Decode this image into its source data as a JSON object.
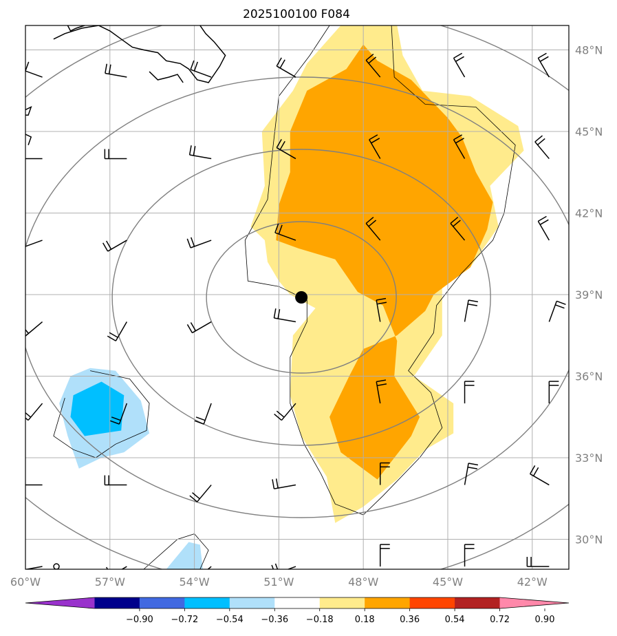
{
  "chart_data": {
    "type": "map",
    "title": "2025100100 F084",
    "lon_range": [
      -60,
      -40.7
    ],
    "lat_range": [
      28.9,
      48.9
    ],
    "lon_ticks": [
      {
        "value": -60,
        "label": "60°W"
      },
      {
        "value": -57,
        "label": "57°W"
      },
      {
        "value": -54,
        "label": "54°W"
      },
      {
        "value": -51,
        "label": "51°W"
      },
      {
        "value": -48,
        "label": "48°W"
      },
      {
        "value": -45,
        "label": "45°W"
      },
      {
        "value": -42,
        "label": "42°W"
      }
    ],
    "lat_ticks": [
      {
        "value": 30,
        "label": "30°N"
      },
      {
        "value": 33,
        "label": "33°N"
      },
      {
        "value": 36,
        "label": "36°N"
      },
      {
        "value": 39,
        "label": "39°N"
      },
      {
        "value": 42,
        "label": "42°N"
      },
      {
        "value": 45,
        "label": "45°N"
      },
      {
        "value": 48,
        "label": "48°N"
      }
    ],
    "grid": true,
    "center_marker": {
      "lon": -50.2,
      "lat": 38.9
    },
    "range_rings": true,
    "colorbar": {
      "ticks": [
        "−0.90",
        "−0.72",
        "−0.54",
        "−0.36",
        "−0.18",
        "0.18",
        "0.36",
        "0.54",
        "0.72",
        "0.90"
      ],
      "levels": [
        -0.9,
        -0.72,
        -0.54,
        -0.36,
        -0.18,
        0.18,
        0.36,
        0.54,
        0.72,
        0.9
      ],
      "colors": [
        "#9932cc",
        "#00008b",
        "#4169e1",
        "#00bfff",
        "#b0e0fa",
        "#ffffff",
        "#ffeb8c",
        "#ffa500",
        "#ff4500",
        "#b22222",
        "#ff88aa"
      ],
      "extend": "both"
    },
    "filled_regions": [
      {
        "level": 0.18,
        "color": "#ffeb8c",
        "polygon": [
          [
            -48.8,
            48.9
          ],
          [
            -46.8,
            48.9
          ],
          [
            -46.6,
            47.8
          ],
          [
            -45.9,
            46.5
          ],
          [
            -44.2,
            46.3
          ],
          [
            -42.5,
            45.2
          ],
          [
            -42.3,
            44.3
          ],
          [
            -43.5,
            43.0
          ],
          [
            -43.2,
            41.5
          ],
          [
            -44.2,
            40.0
          ],
          [
            -45.2,
            39.5
          ],
          [
            -45.2,
            37.5
          ],
          [
            -46.2,
            36.0
          ],
          [
            -44.8,
            35.0
          ],
          [
            -44.8,
            33.9
          ],
          [
            -45.8,
            33.3
          ],
          [
            -46.8,
            32.2
          ],
          [
            -48.0,
            31.2
          ],
          [
            -49.0,
            30.6
          ],
          [
            -49.3,
            32.3
          ],
          [
            -50.2,
            33.8
          ],
          [
            -50.6,
            35.3
          ],
          [
            -50.5,
            37.5
          ],
          [
            -49.7,
            38.5
          ],
          [
            -50.6,
            39.0
          ],
          [
            -51.0,
            39.5
          ],
          [
            -51.4,
            40.2
          ],
          [
            -51.5,
            41.0
          ],
          [
            -52.0,
            41.5
          ],
          [
            -51.5,
            43.0
          ],
          [
            -51.6,
            45.0
          ],
          [
            -50.5,
            46.5
          ],
          [
            -50.0,
            47.5
          ]
        ]
      },
      {
        "level": 0.36,
        "color": "#ffa500",
        "polygon": [
          [
            -48.0,
            48.2
          ],
          [
            -48.6,
            47.3
          ],
          [
            -50.0,
            46.5
          ],
          [
            -50.6,
            45.0
          ],
          [
            -50.6,
            43.5
          ],
          [
            -51.0,
            42.3
          ],
          [
            -51.1,
            41.0
          ],
          [
            -50.3,
            40.7
          ],
          [
            -49.0,
            40.3
          ],
          [
            -48.2,
            39.1
          ],
          [
            -47.3,
            38.6
          ],
          [
            -46.8,
            37.3
          ],
          [
            -46.9,
            36.0
          ],
          [
            -46.0,
            34.5
          ],
          [
            -46.3,
            33.8
          ],
          [
            -47.5,
            32.2
          ],
          [
            -48.8,
            33.2
          ],
          [
            -49.2,
            34.5
          ],
          [
            -48.5,
            36.0
          ],
          [
            -48.0,
            37.0
          ],
          [
            -46.8,
            37.5
          ],
          [
            -45.8,
            38.4
          ],
          [
            -45.5,
            39.0
          ],
          [
            -44.2,
            40.0
          ],
          [
            -43.6,
            41.4
          ],
          [
            -43.4,
            42.4
          ],
          [
            -44.0,
            43.5
          ],
          [
            -44.5,
            44.8
          ],
          [
            -45.0,
            45.5
          ],
          [
            -46.3,
            46.9
          ],
          [
            -47.5,
            47.6
          ]
        ]
      },
      {
        "level": -0.36,
        "color": "#b0e0fa",
        "polygon": [
          [
            -58.4,
            36.0
          ],
          [
            -57.7,
            36.3
          ],
          [
            -56.8,
            36.2
          ],
          [
            -55.9,
            35.1
          ],
          [
            -55.6,
            33.9
          ],
          [
            -56.5,
            33.2
          ],
          [
            -57.3,
            33.0
          ],
          [
            -58.1,
            32.6
          ],
          [
            -58.5,
            33.8
          ],
          [
            -58.8,
            35.0
          ]
        ]
      },
      {
        "level": -0.54,
        "color": "#00bfff",
        "polygon": [
          [
            -57.3,
            35.8
          ],
          [
            -56.5,
            35.3
          ],
          [
            -56.6,
            34.0
          ],
          [
            -57.9,
            33.8
          ],
          [
            -58.4,
            34.5
          ],
          [
            -58.3,
            35.3
          ]
        ]
      },
      {
        "level": -0.36,
        "color": "#b0e0fa",
        "polygon": [
          [
            -55.0,
            28.9
          ],
          [
            -54.2,
            29.9
          ],
          [
            -53.8,
            29.8
          ],
          [
            -53.7,
            28.9
          ]
        ]
      }
    ]
  }
}
